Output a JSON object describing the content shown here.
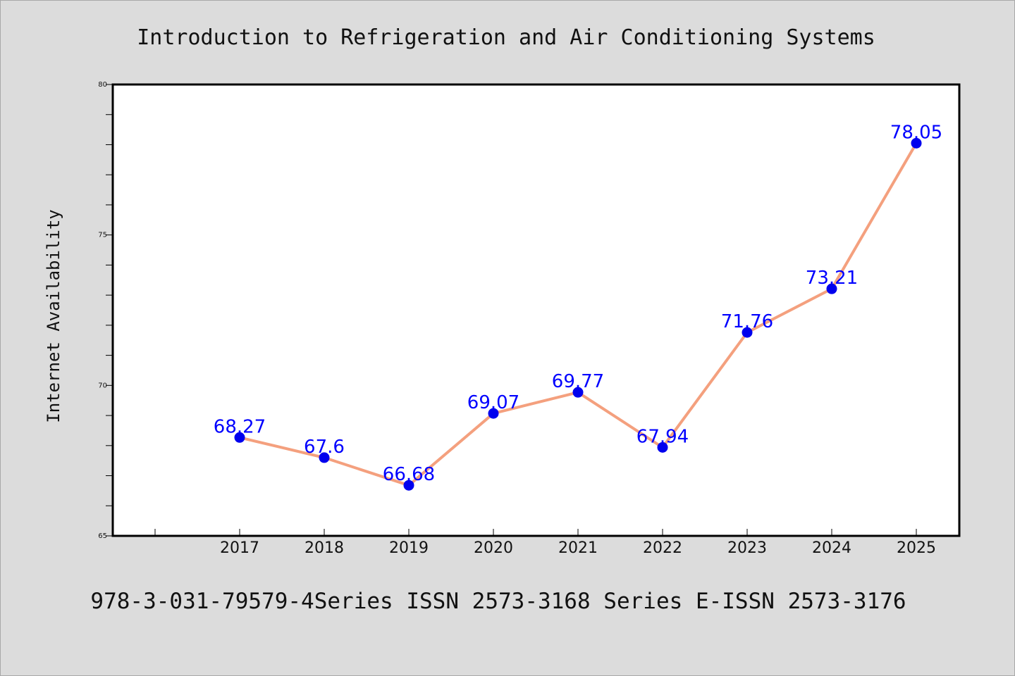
{
  "chart_data": {
    "type": "line",
    "title": "Introduction to Refrigeration and Air Conditioning Systems",
    "xlabel": "",
    "ylabel": "Internet Availability",
    "footer": "978-3-031-79579-4Series ISSN 2573-3168 Series E-ISSN 2573-3176",
    "categories": [
      "2017",
      "2018",
      "2019",
      "2020",
      "2021",
      "2022",
      "2023",
      "2024",
      "2025"
    ],
    "series": [
      {
        "values": [
          68.27,
          67.6,
          66.68,
          69.07,
          69.77,
          67.94,
          71.76,
          73.21,
          78.05
        ],
        "labels": [
          "68.27",
          "67.6",
          "66.68",
          "69.07",
          "69.77",
          "67.94",
          "71.76",
          "73.21",
          "78.05"
        ],
        "line_color": "#f4a07e",
        "marker_color": "#0000ee",
        "label_color": "#0000ff"
      }
    ],
    "ylim": [
      65,
      80
    ],
    "yticks": [
      "65",
      "70",
      "75",
      "80"
    ],
    "grid": false,
    "legend": "none",
    "background": "#dcdcdc",
    "plot_background": "#ffffff"
  }
}
